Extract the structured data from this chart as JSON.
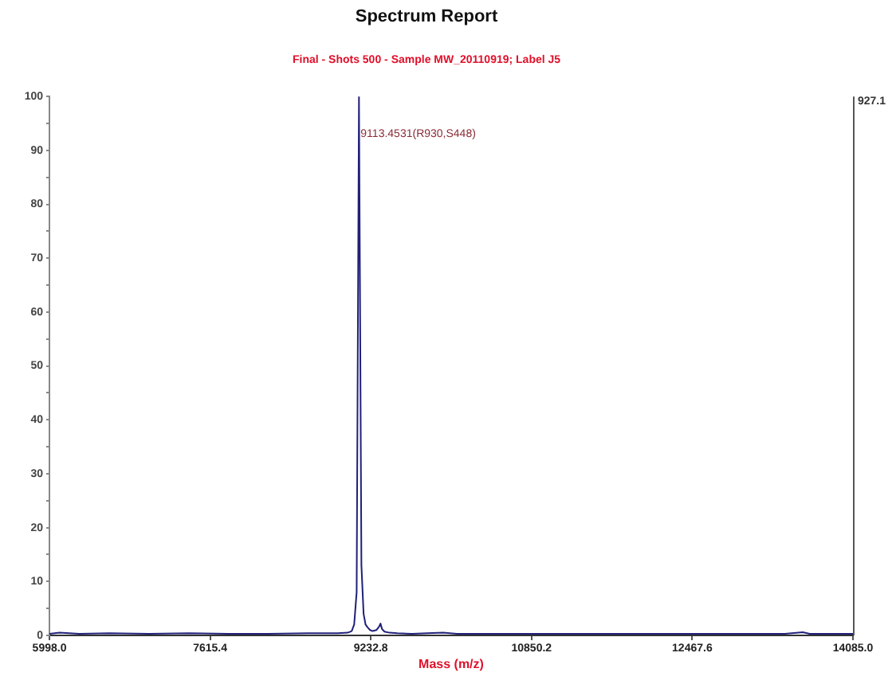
{
  "chart_data": {
    "type": "line",
    "title": "Spectrum Report",
    "subtitle": "Final - Shots 500 - Sample MW_20110919; Label J5",
    "xlabel": "Mass (m/z)",
    "annotations": [
      {
        "text": "9113.4531(R930,S448)",
        "x": 9113.4531,
        "y": 93
      },
      "927.1"
    ],
    "x": [
      5998,
      6100,
      6300,
      6600,
      7000,
      7400,
      7800,
      8200,
      8600,
      8900,
      9000,
      9040,
      9065,
      9090,
      9113.4531,
      9138,
      9160,
      9180,
      9200,
      9225,
      9250,
      9290,
      9315,
      9330,
      9345,
      9370,
      9420,
      9500,
      9650,
      9800,
      9960,
      10100,
      10500,
      11000,
      11500,
      12000,
      12500,
      13000,
      13400,
      13580,
      13650,
      13800,
      14085
    ],
    "series": [
      {
        "color": "#20207a",
        "values": [
          0.3,
          0.5,
          0.3,
          0.4,
          0.3,
          0.4,
          0.3,
          0.3,
          0.4,
          0.4,
          0.5,
          0.8,
          2,
          8,
          100,
          13,
          4,
          2,
          1.5,
          1.0,
          0.8,
          1.0,
          1.6,
          2.2,
          1.2,
          0.7,
          0.5,
          0.4,
          0.3,
          0.4,
          0.5,
          0.3,
          0.3,
          0.3,
          0.3,
          0.3,
          0.3,
          0.3,
          0.3,
          0.6,
          0.3,
          0.3,
          0.3
        ]
      }
    ],
    "xlim": [
      5998,
      14085
    ],
    "xticks": [
      {
        "value": 5998,
        "label": "5998.0"
      },
      {
        "value": 7615.4,
        "label": "7615.4"
      },
      {
        "value": 9232.8,
        "label": "9232.8"
      },
      {
        "value": 10850.2,
        "label": "10850.2"
      },
      {
        "value": 12467.6,
        "label": "12467.6"
      },
      {
        "value": 14085,
        "label": "14085.0"
      }
    ],
    "ylim": [
      0,
      100
    ],
    "yticks": [
      0,
      {
        "value": 5,
        "label": null
      },
      10,
      {
        "value": 15,
        "label": null
      },
      20,
      {
        "value": 25,
        "label": null
      },
      30,
      {
        "value": 35,
        "label": null
      },
      40,
      {
        "value": 45,
        "label": null
      },
      50,
      {
        "value": 55,
        "label": null
      },
      60,
      {
        "value": 65,
        "label": null
      },
      70,
      {
        "value": 75,
        "label": null
      },
      80,
      {
        "value": 85,
        "label": null
      },
      90,
      {
        "value": 95,
        "label": null
      },
      100
    ]
  }
}
